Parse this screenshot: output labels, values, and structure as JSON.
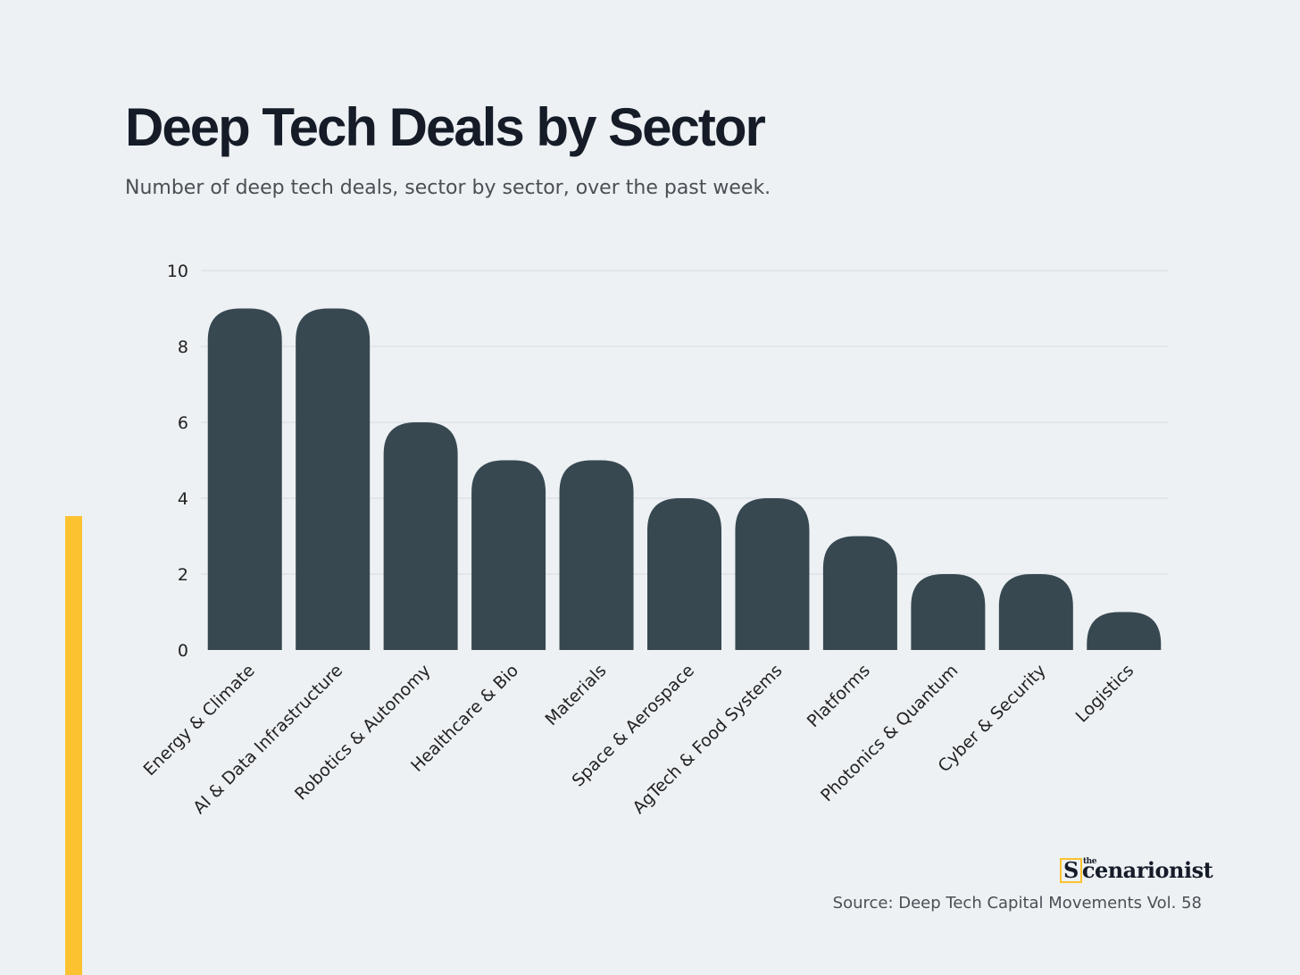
{
  "header": {
    "title": "Deep Tech Deals by Sector",
    "subtitle": "Number of deep tech deals, sector by sector, over the past week."
  },
  "footer": {
    "logo_text": "the Scenarionist",
    "source": "Source: Deep Tech Capital Movements Vol. 58"
  },
  "colors": {
    "bar": "#374851",
    "accent": "#fdc22f",
    "grid": "#d6dbdf"
  },
  "chart_data": {
    "type": "bar",
    "title": "Deep Tech Deals by Sector",
    "xlabel": "",
    "ylabel": "",
    "ylim": [
      0,
      10
    ],
    "yticks": [
      0,
      2,
      4,
      6,
      8,
      10
    ],
    "grid": true,
    "categories": [
      "Energy & Climate",
      "AI & Data Infrastructure",
      "Robotics & Autonomy",
      "Healthcare & Bio",
      "Materials",
      "Space & Aerospace",
      "AgTech & Food Systems",
      "Platforms",
      "Photonics & Quantum",
      "Cyber & Security",
      "Logistics"
    ],
    "values": [
      9,
      9,
      6,
      5,
      5,
      4,
      4,
      3,
      2,
      2,
      1
    ]
  }
}
